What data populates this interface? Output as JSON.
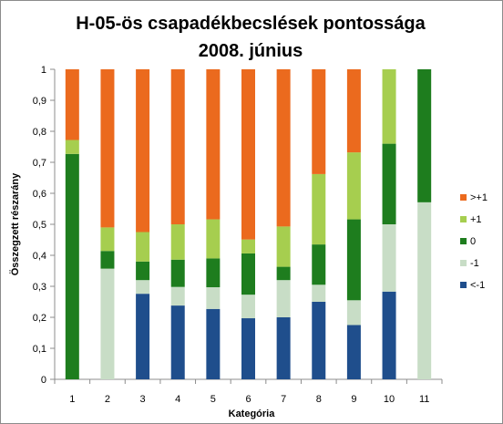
{
  "chart_data": {
    "type": "bar",
    "stacked": true,
    "title_lines": [
      "H-05-ös csapadékbecslések pontossága",
      "2008. június"
    ],
    "xlabel": "Kategória",
    "ylabel": "Összegzett részarány",
    "ylim": [
      0,
      1
    ],
    "ytick_labels": [
      "0",
      "0,1",
      "0,2",
      "0,3",
      "0,4",
      "0,5",
      "0,6",
      "0,7",
      "0,8",
      "0,9",
      "1"
    ],
    "categories": [
      "1",
      "2",
      "3",
      "4",
      "5",
      "6",
      "7",
      "8",
      "9",
      "10",
      "11"
    ],
    "grid": false,
    "legend_position": "right",
    "series": [
      {
        "name": "<-1",
        "color": "#1F4E8C",
        "values": [
          0,
          0,
          0.276,
          0.238,
          0.227,
          0.197,
          0.2,
          0.25,
          0.175,
          0.283,
          0
        ]
      },
      {
        "name": "-1",
        "color": "#C8DDC6",
        "values": [
          0,
          0.357,
          0.044,
          0.06,
          0.07,
          0.076,
          0.12,
          0.055,
          0.08,
          0.217,
          0.571
        ]
      },
      {
        "name": "0",
        "color": "#1E7D1E",
        "values": [
          0.727,
          0.057,
          0.06,
          0.088,
          0.093,
          0.133,
          0.043,
          0.13,
          0.261,
          0.26,
          0.429
        ]
      },
      {
        "name": "+1",
        "color": "#A6CE4F",
        "values": [
          0.045,
          0.076,
          0.095,
          0.114,
          0.126,
          0.045,
          0.13,
          0.227,
          0.216,
          0.24,
          0
        ]
      },
      {
        "name": ">+1",
        "color": "#EB6A1E",
        "values": [
          0.228,
          0.51,
          0.525,
          0.5,
          0.484,
          0.549,
          0.507,
          0.338,
          0.268,
          0,
          0
        ]
      }
    ]
  }
}
